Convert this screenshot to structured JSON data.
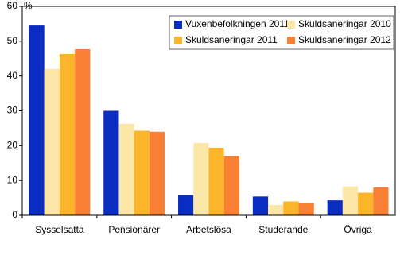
{
  "chart_data": {
    "type": "bar",
    "ylabel": "%",
    "categories": [
      "Sysselsatta",
      "Pensionärer",
      "Arbetslösa",
      "Studerande",
      "Övriga"
    ],
    "series": [
      {
        "name": "Vuxenbefolkningen 2011",
        "color": "#0b2cc0",
        "values": [
          54.5,
          30,
          5.8,
          5.4,
          4.3
        ]
      },
      {
        "name": "Skuldsaneringar 2010",
        "color": "#fde7a8",
        "values": [
          42,
          26.3,
          20.8,
          3,
          8.3
        ]
      },
      {
        "name": "Skuldsaneringar 2011",
        "color": "#fbb52a",
        "values": [
          46.3,
          24.3,
          19.4,
          4,
          6.5
        ]
      },
      {
        "name": "Skuldsaneringar 2012",
        "color": "#f78035",
        "values": [
          47.7,
          24,
          17,
          3.5,
          8
        ]
      }
    ],
    "ylim": [
      0,
      60
    ],
    "yticks": [
      0,
      10,
      20,
      30,
      40,
      50,
      60
    ],
    "grid": false
  }
}
